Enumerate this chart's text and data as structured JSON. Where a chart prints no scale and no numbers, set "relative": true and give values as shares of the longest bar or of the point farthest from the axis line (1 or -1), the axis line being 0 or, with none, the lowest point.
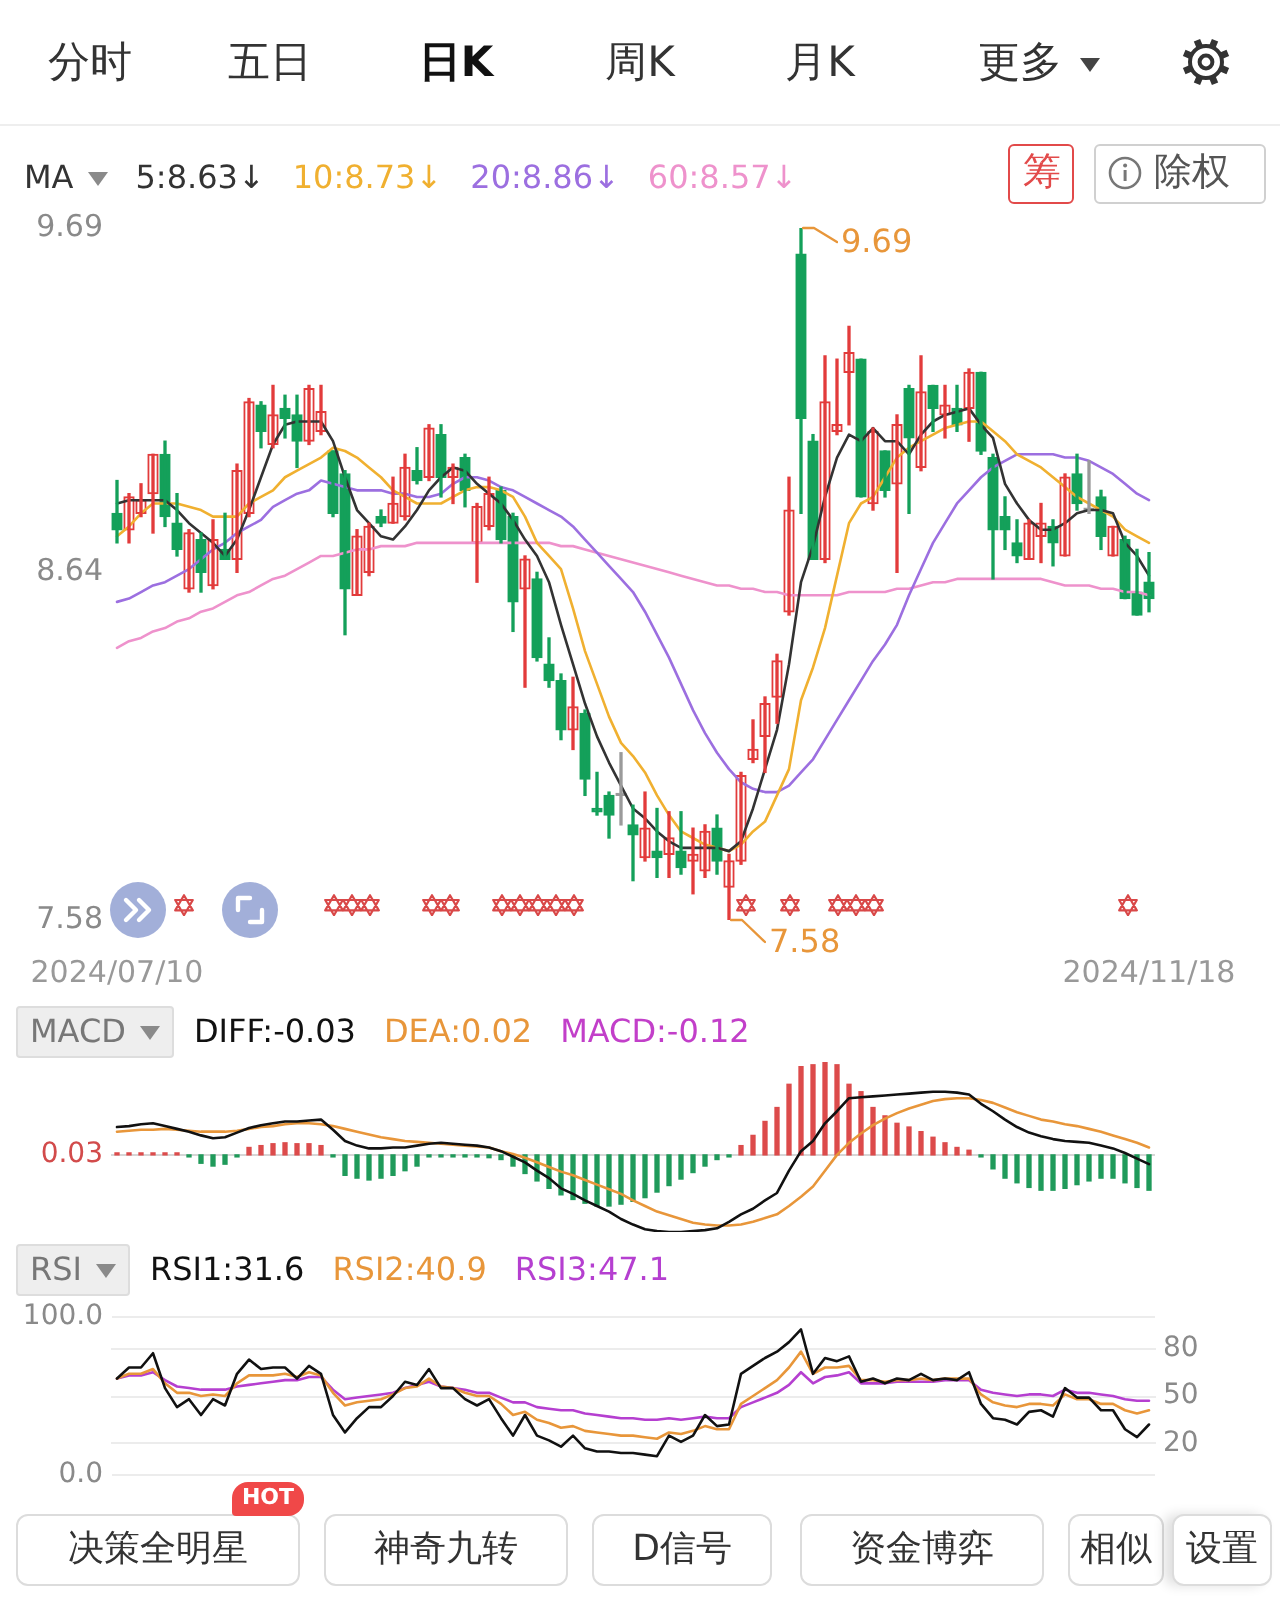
{
  "chart_data": [
    {
      "type": "candlestick",
      "legend_title": "MA",
      "legend": "top left",
      "categories": [
        "2024/07/10",
        null,
        null,
        null,
        null,
        null,
        null,
        null,
        null,
        null,
        null,
        null,
        null,
        null,
        null,
        null,
        null,
        null,
        null,
        null,
        null,
        null,
        null,
        null,
        null,
        null,
        null,
        null,
        null,
        null,
        null,
        null,
        null,
        null,
        null,
        null,
        null,
        null,
        null,
        null,
        null,
        null,
        null,
        null,
        null,
        null,
        null,
        null,
        null,
        null,
        null,
        null,
        null,
        null,
        null,
        null,
        null,
        null,
        null,
        null,
        null,
        null,
        null,
        null,
        null,
        null,
        null,
        null,
        null,
        null,
        null,
        null,
        null,
        null,
        null,
        null,
        null,
        null,
        null,
        null,
        null,
        null,
        null,
        null,
        null,
        null,
        "2024/11/18"
      ],
      "ylim": [
        7.58,
        9.69
      ],
      "yticks": [
        9.69,
        8.64,
        7.58
      ],
      "ohlc": [
        [
          8.82,
          8.92,
          8.73,
          8.77
        ],
        [
          8.77,
          8.88,
          8.73,
          8.87
        ],
        [
          8.82,
          8.91,
          8.81,
          8.86
        ],
        [
          8.88,
          9.0,
          8.76,
          9.0
        ],
        [
          9.0,
          9.04,
          8.78,
          8.81
        ],
        [
          8.79,
          8.88,
          8.69,
          8.71
        ],
        [
          8.59,
          8.77,
          8.58,
          8.76
        ],
        [
          8.74,
          8.76,
          8.58,
          8.64
        ],
        [
          8.6,
          8.8,
          8.59,
          8.74
        ],
        [
          8.71,
          8.82,
          8.68,
          8.68
        ],
        [
          8.68,
          8.97,
          8.64,
          8.95
        ],
        [
          8.82,
          9.17,
          8.81,
          9.16
        ],
        [
          9.15,
          9.16,
          9.02,
          9.07
        ],
        [
          9.03,
          9.21,
          9.02,
          9.12
        ],
        [
          9.14,
          9.18,
          9.05,
          9.11
        ],
        [
          9.12,
          9.18,
          8.96,
          9.04
        ],
        [
          9.04,
          9.21,
          9.03,
          9.2
        ],
        [
          9.07,
          9.21,
          9.06,
          9.13
        ],
        [
          9.01,
          9.01,
          8.81,
          8.82
        ],
        [
          8.94,
          8.95,
          8.45,
          8.59
        ],
        [
          8.57,
          8.77,
          8.57,
          8.75
        ],
        [
          8.64,
          8.79,
          8.63,
          8.78
        ],
        [
          8.81,
          8.83,
          8.78,
          8.79
        ],
        [
          8.79,
          8.93,
          8.79,
          8.85
        ],
        [
          8.81,
          9.0,
          8.8,
          8.96
        ],
        [
          8.95,
          9.02,
          8.91,
          8.92
        ],
        [
          8.93,
          9.09,
          8.92,
          9.08
        ],
        [
          9.06,
          9.09,
          8.87,
          8.93
        ],
        [
          8.93,
          8.97,
          8.85,
          8.96
        ],
        [
          8.99,
          9.0,
          8.84,
          8.89
        ],
        [
          8.73,
          8.85,
          8.61,
          8.84
        ],
        [
          8.78,
          8.93,
          8.77,
          8.88
        ],
        [
          8.89,
          8.9,
          8.73,
          8.74
        ],
        [
          8.81,
          8.82,
          8.46,
          8.55
        ],
        [
          8.59,
          8.69,
          8.29,
          8.68
        ],
        [
          8.62,
          8.64,
          8.37,
          8.38
        ],
        [
          8.36,
          8.44,
          8.29,
          8.31
        ],
        [
          8.31,
          8.33,
          8.13,
          8.16
        ],
        [
          8.16,
          8.32,
          8.1,
          8.23
        ],
        [
          8.21,
          8.22,
          7.96,
          8.01
        ],
        [
          7.92,
          8.03,
          7.9,
          7.91
        ],
        [
          7.96,
          7.97,
          7.83,
          7.9
        ],
        [
          7.96,
          8.09,
          7.87,
          7.96
        ],
        [
          7.87,
          7.93,
          7.7,
          7.84
        ],
        [
          7.77,
          7.97,
          7.76,
          7.86
        ],
        [
          7.79,
          7.92,
          7.71,
          7.77
        ],
        [
          7.78,
          7.91,
          7.71,
          7.83
        ],
        [
          7.79,
          7.91,
          7.72,
          7.74
        ],
        [
          7.76,
          7.86,
          7.66,
          7.78
        ],
        [
          7.73,
          7.87,
          7.71,
          7.85
        ],
        [
          7.86,
          7.9,
          7.72,
          7.76
        ],
        [
          7.68,
          7.78,
          7.58,
          7.76
        ],
        [
          7.76,
          8.03,
          7.75,
          8.02
        ],
        [
          8.07,
          8.19,
          8.06,
          8.1
        ],
        [
          8.14,
          8.26,
          8.03,
          8.24
        ],
        [
          8.26,
          8.39,
          8.18,
          8.37
        ],
        [
          8.52,
          8.93,
          8.51,
          8.83
        ],
        [
          9.61,
          9.69,
          8.82,
          9.11
        ],
        [
          9.04,
          9.06,
          8.68,
          8.68
        ],
        [
          8.68,
          9.3,
          8.67,
          9.16
        ],
        [
          9.07,
          9.29,
          9.06,
          9.09
        ],
        [
          9.25,
          9.39,
          9.09,
          9.31
        ],
        [
          9.29,
          9.29,
          8.87,
          8.87
        ],
        [
          8.85,
          9.08,
          8.83,
          9.07
        ],
        [
          9.01,
          9.01,
          8.87,
          8.89
        ],
        [
          8.91,
          9.12,
          8.64,
          9.09
        ],
        [
          9.2,
          9.21,
          8.82,
          9.05
        ],
        [
          8.96,
          9.3,
          8.95,
          9.19
        ],
        [
          9.21,
          9.21,
          9.07,
          9.14
        ],
        [
          9.12,
          9.21,
          9.05,
          9.15
        ],
        [
          9.14,
          9.21,
          9.07,
          9.09
        ],
        [
          9.14,
          9.26,
          9.04,
          9.25
        ],
        [
          9.25,
          9.25,
          9.0,
          9.01
        ],
        [
          8.99,
          9.0,
          8.62,
          8.77
        ],
        [
          8.81,
          8.87,
          8.71,
          8.77
        ],
        [
          8.73,
          8.8,
          8.67,
          8.69
        ],
        [
          8.68,
          8.8,
          8.68,
          8.79
        ],
        [
          8.75,
          8.85,
          8.67,
          8.79
        ],
        [
          8.78,
          8.8,
          8.66,
          8.73
        ],
        [
          8.69,
          8.94,
          8.69,
          8.93
        ],
        [
          8.94,
          9.0,
          8.83,
          8.85
        ],
        [
          8.83,
          8.98,
          8.82,
          8.83
        ],
        [
          8.87,
          8.89,
          8.71,
          8.75
        ],
        [
          8.69,
          8.78,
          8.69,
          8.78
        ],
        [
          8.74,
          8.75,
          8.56,
          8.56
        ],
        [
          8.58,
          8.71,
          8.51,
          8.51
        ],
        [
          8.61,
          8.7,
          8.52,
          8.56
        ]
      ],
      "colors": [
        "#14a05a",
        "#e23b3b",
        "#e23b3b",
        "#e23b3b",
        "#14a05a",
        "#14a05a",
        "#e23b3b",
        "#14a05a",
        "#e23b3b",
        "#14a05a",
        "#e23b3b",
        "#e23b3b",
        "#14a05a",
        "#e23b3b",
        "#14a05a",
        "#14a05a",
        "#e23b3b",
        "#e23b3b",
        "#14a05a",
        "#14a05a",
        "#e23b3b",
        "#e23b3b",
        "#14a05a",
        "#e23b3b",
        "#e23b3b",
        "#14a05a",
        "#e23b3b",
        "#14a05a",
        "#e23b3b",
        "#14a05a",
        "#e23b3b",
        "#e23b3b",
        "#14a05a",
        "#14a05a",
        "#e23b3b",
        "#14a05a",
        "#14a05a",
        "#14a05a",
        "#e23b3b",
        "#14a05a",
        "#14a05a",
        "#14a05a",
        "#9a9a9a",
        "#14a05a",
        "#e23b3b",
        "#14a05a",
        "#e23b3b",
        "#14a05a",
        "#e23b3b",
        "#e23b3b",
        "#14a05a",
        "#e23b3b",
        "#e23b3b",
        "#e23b3b",
        "#e23b3b",
        "#e23b3b",
        "#e23b3b",
        "#14a05a",
        "#14a05a",
        "#e23b3b",
        "#e23b3b",
        "#e23b3b",
        "#14a05a",
        "#e23b3b",
        "#14a05a",
        "#e23b3b",
        "#14a05a",
        "#e23b3b",
        "#14a05a",
        "#e23b3b",
        "#14a05a",
        "#e23b3b",
        "#14a05a",
        "#14a05a",
        "#14a05a",
        "#14a05a",
        "#e23b3b",
        "#e23b3b",
        "#14a05a",
        "#e23b3b",
        "#14a05a",
        "#9a9a9a",
        "#14a05a",
        "#e23b3b",
        "#14a05a",
        "#14a05a",
        "#14a05a"
      ],
      "series": [
        {
          "name": "5:8.63↓",
          "type": "line",
          "color": "#333333",
          "values": [
            8.85,
            8.86,
            8.86,
            8.86,
            8.86,
            8.83,
            8.79,
            8.76,
            8.73,
            8.69,
            8.74,
            8.83,
            8.93,
            9.03,
            9.09,
            9.1,
            9.1,
            9.1,
            9.04,
            8.93,
            8.83,
            8.79,
            8.75,
            8.74,
            8.78,
            8.83,
            8.89,
            8.93,
            8.96,
            8.95,
            8.91,
            8.88,
            8.85,
            8.8,
            8.74,
            8.69,
            8.61,
            8.48,
            8.36,
            8.24,
            8.14,
            8.06,
            7.99,
            7.92,
            7.89,
            7.85,
            7.82,
            7.8,
            7.8,
            7.8,
            7.8,
            7.79,
            7.82,
            7.92,
            8.04,
            8.16,
            8.36,
            8.61,
            8.72,
            8.87,
            8.99,
            9.06,
            9.04,
            9.08,
            9.04,
            9.04,
            9.0,
            9.06,
            9.1,
            9.12,
            9.13,
            9.14,
            9.09,
            9.05,
            8.91,
            8.85,
            8.8,
            8.77,
            8.77,
            8.79,
            8.82,
            8.83,
            8.83,
            8.82,
            8.73,
            8.69,
            8.63
          ]
        },
        {
          "name": "10:8.73↓",
          "type": "line",
          "color": "#f0b030",
          "values": [
            8.75,
            8.78,
            8.82,
            8.85,
            8.85,
            8.85,
            8.84,
            8.83,
            8.81,
            8.81,
            8.81,
            8.85,
            8.87,
            8.89,
            8.93,
            8.95,
            8.97,
            8.99,
            9.02,
            9.01,
            8.99,
            8.96,
            8.93,
            8.89,
            8.87,
            8.85,
            8.85,
            8.85,
            8.87,
            8.89,
            8.9,
            8.9,
            8.89,
            8.87,
            8.81,
            8.73,
            8.69,
            8.65,
            8.53,
            8.4,
            8.3,
            8.2,
            8.12,
            8.08,
            8.03,
            7.96,
            7.9,
            7.85,
            7.83,
            7.81,
            7.8,
            7.79,
            7.81,
            7.85,
            7.88,
            7.96,
            8.04,
            8.25,
            8.35,
            8.47,
            8.63,
            8.79,
            8.85,
            8.87,
            8.93,
            8.99,
            9.02,
            9.04,
            9.06,
            9.08,
            9.09,
            9.1,
            9.1,
            9.07,
            9.04,
            9.0,
            8.98,
            8.96,
            8.93,
            8.9,
            8.87,
            8.85,
            8.83,
            8.81,
            8.77,
            8.75,
            8.73
          ]
        },
        {
          "name": "20:8.86↓",
          "type": "line",
          "color": "#9c6fe0",
          "values": [
            8.55,
            8.56,
            8.58,
            8.6,
            8.61,
            8.63,
            8.65,
            8.68,
            8.71,
            8.73,
            8.76,
            8.78,
            8.8,
            8.84,
            8.86,
            8.88,
            8.89,
            8.92,
            8.91,
            8.9,
            8.89,
            8.89,
            8.89,
            8.88,
            8.88,
            8.87,
            8.87,
            8.88,
            8.91,
            8.93,
            8.93,
            8.92,
            8.9,
            8.89,
            8.87,
            8.85,
            8.83,
            8.81,
            8.78,
            8.74,
            8.7,
            8.66,
            8.62,
            8.58,
            8.52,
            8.45,
            8.38,
            8.3,
            8.22,
            8.15,
            8.09,
            8.04,
            8.0,
            7.98,
            7.97,
            7.97,
            7.99,
            8.03,
            8.07,
            8.13,
            8.19,
            8.25,
            8.31,
            8.37,
            8.42,
            8.48,
            8.57,
            8.65,
            8.73,
            8.79,
            8.85,
            8.89,
            8.93,
            8.96,
            8.98,
            9.0,
            9.0,
            9.0,
            9.0,
            8.99,
            8.99,
            8.98,
            8.96,
            8.94,
            8.91,
            8.88,
            8.86
          ]
        },
        {
          "name": "60:8.57↓",
          "type": "line",
          "color": "#ee92cc",
          "values": [
            8.41,
            8.43,
            8.44,
            8.46,
            8.47,
            8.49,
            8.5,
            8.52,
            8.53,
            8.55,
            8.57,
            8.58,
            8.6,
            8.62,
            8.63,
            8.65,
            8.67,
            8.69,
            8.69,
            8.7,
            8.71,
            8.71,
            8.72,
            8.72,
            8.72,
            8.73,
            8.73,
            8.73,
            8.73,
            8.73,
            8.73,
            8.73,
            8.73,
            8.73,
            8.73,
            8.73,
            8.73,
            8.72,
            8.72,
            8.71,
            8.7,
            8.69,
            8.68,
            8.67,
            8.66,
            8.65,
            8.64,
            8.63,
            8.62,
            8.61,
            8.6,
            8.6,
            8.59,
            8.59,
            8.58,
            8.58,
            8.57,
            8.57,
            8.57,
            8.57,
            8.57,
            8.58,
            8.58,
            8.58,
            8.58,
            8.59,
            8.59,
            8.6,
            8.61,
            8.61,
            8.62,
            8.62,
            8.62,
            8.62,
            8.62,
            8.62,
            8.62,
            8.62,
            8.61,
            8.6,
            8.6,
            8.6,
            8.59,
            8.59,
            8.58,
            8.58,
            8.57
          ]
        }
      ],
      "annotations": [
        "9.69",
        "7.58",
        "分时",
        "五日",
        "日K",
        "周K",
        "月K",
        "更多",
        "筹",
        "除权"
      ]
    },
    {
      "type": "line",
      "legend_title": "MACD",
      "legend": "top left",
      "relative": true,
      "tick_labels": false,
      "categories": [
        null,
        null,
        null,
        null,
        null,
        null,
        null,
        null,
        null,
        null,
        null,
        null,
        null,
        null,
        null,
        null,
        null,
        null,
        null,
        null,
        null,
        null,
        null,
        null,
        null,
        null,
        null,
        null,
        null,
        null,
        null,
        null,
        null,
        null,
        null,
        null,
        null,
        null,
        null,
        null,
        null,
        null,
        null,
        null,
        null,
        null,
        null,
        null,
        null,
        null,
        null,
        null,
        null,
        null,
        null,
        null,
        null,
        null,
        null,
        null,
        null,
        null,
        null,
        null,
        null,
        null,
        null,
        null,
        null,
        null,
        null,
        null,
        null,
        null,
        null,
        null,
        null,
        null,
        null,
        null,
        null,
        null,
        null,
        null,
        null,
        null,
        null
      ],
      "series": [
        {
          "name": "DIFF:-0.03",
          "type": "line",
          "color": "#111111",
          "values": [
            0.3,
            0.31,
            0.33,
            0.34,
            0.31,
            0.28,
            0.25,
            0.21,
            0.18,
            0.19,
            0.24,
            0.29,
            0.32,
            0.34,
            0.36,
            0.36,
            0.37,
            0.38,
            0.27,
            0.15,
            0.1,
            0.07,
            0.07,
            0.08,
            0.08,
            0.1,
            0.12,
            0.13,
            0.12,
            0.11,
            0.1,
            0.08,
            0.04,
            -0.02,
            -0.08,
            -0.17,
            -0.25,
            -0.36,
            -0.42,
            -0.49,
            -0.55,
            -0.61,
            -0.69,
            -0.75,
            -0.8,
            -0.82,
            -0.83,
            -0.83,
            -0.82,
            -0.81,
            -0.79,
            -0.72,
            -0.64,
            -0.58,
            -0.49,
            -0.41,
            -0.17,
            0.04,
            0.15,
            0.34,
            0.47,
            0.61,
            0.62,
            0.63,
            0.64,
            0.65,
            0.66,
            0.67,
            0.68,
            0.68,
            0.67,
            0.65,
            0.55,
            0.47,
            0.38,
            0.3,
            0.24,
            0.2,
            0.17,
            0.15,
            0.14,
            0.13,
            0.1,
            0.07,
            0.02,
            -0.04,
            -0.1
          ]
        },
        {
          "name": "DEA:0.02",
          "type": "line",
          "color": "#e8963a",
          "values": [
            0.25,
            0.26,
            0.27,
            0.27,
            0.28,
            0.27,
            0.26,
            0.25,
            0.25,
            0.25,
            0.26,
            0.28,
            0.3,
            0.31,
            0.33,
            0.34,
            0.34,
            0.33,
            0.31,
            0.28,
            0.25,
            0.22,
            0.19,
            0.17,
            0.15,
            0.14,
            0.13,
            0.12,
            0.11,
            0.1,
            0.09,
            0.08,
            0.04,
            0.01,
            -0.03,
            -0.08,
            -0.13,
            -0.18,
            -0.22,
            -0.27,
            -0.32,
            -0.37,
            -0.42,
            -0.49,
            -0.55,
            -0.61,
            -0.65,
            -0.69,
            -0.73,
            -0.75,
            -0.76,
            -0.76,
            -0.75,
            -0.72,
            -0.68,
            -0.64,
            -0.55,
            -0.45,
            -0.34,
            -0.17,
            0.0,
            0.13,
            0.23,
            0.32,
            0.39,
            0.45,
            0.5,
            0.54,
            0.58,
            0.6,
            0.61,
            0.61,
            0.59,
            0.56,
            0.51,
            0.46,
            0.42,
            0.38,
            0.36,
            0.33,
            0.31,
            0.28,
            0.25,
            0.21,
            0.17,
            0.13,
            0.08
          ]
        },
        {
          "name": "MACD:-0.12",
          "type": "bar",
          "values": [
            0.02,
            0.02,
            0.02,
            0.02,
            0.01,
            0.01,
            -0.02,
            -0.09,
            -0.12,
            -0.1,
            -0.02,
            0.08,
            0.1,
            0.12,
            0.13,
            0.12,
            0.12,
            0.1,
            -0.02,
            -0.22,
            -0.25,
            -0.27,
            -0.25,
            -0.22,
            -0.17,
            -0.12,
            -0.02,
            -0.01,
            -0.01,
            -0.02,
            -0.02,
            -0.03,
            -0.05,
            -0.12,
            -0.2,
            -0.28,
            -0.36,
            -0.43,
            -0.48,
            -0.52,
            -0.55,
            -0.55,
            -0.53,
            -0.5,
            -0.46,
            -0.4,
            -0.33,
            -0.26,
            -0.19,
            -0.12,
            -0.05,
            -0.02,
            0.1,
            0.21,
            0.36,
            0.51,
            0.76,
            0.95,
            0.97,
            1.0,
            0.97,
            0.76,
            0.68,
            0.51,
            0.42,
            0.34,
            0.3,
            0.25,
            0.19,
            0.13,
            0.08,
            0.05,
            -0.02,
            -0.15,
            -0.25,
            -0.3,
            -0.35,
            -0.38,
            -0.38,
            -0.36,
            -0.32,
            -0.28,
            -0.25,
            -0.25,
            -0.3,
            -0.35,
            -0.38
          ],
          "colors": [
            "#dc4b4b",
            "#dc4b4b",
            "#dc4b4b",
            "#dc4b4b",
            "#dc4b4b",
            "#dc4b4b",
            "#1f9a5a",
            "#1f9a5a",
            "#1f9a5a",
            "#1f9a5a",
            "#1f9a5a",
            "#dc4b4b",
            "#dc4b4b",
            "#dc4b4b",
            "#dc4b4b",
            "#dc4b4b",
            "#dc4b4b",
            "#dc4b4b",
            "#1f9a5a",
            "#1f9a5a",
            "#1f9a5a",
            "#1f9a5a",
            "#1f9a5a",
            "#1f9a5a",
            "#1f9a5a",
            "#1f9a5a",
            "#1f9a5a",
            "#1f9a5a",
            "#1f9a5a",
            "#1f9a5a",
            "#1f9a5a",
            "#1f9a5a",
            "#1f9a5a",
            "#1f9a5a",
            "#1f9a5a",
            "#1f9a5a",
            "#1f9a5a",
            "#1f9a5a",
            "#1f9a5a",
            "#1f9a5a",
            "#1f9a5a",
            "#1f9a5a",
            "#1f9a5a",
            "#1f9a5a",
            "#1f9a5a",
            "#1f9a5a",
            "#1f9a5a",
            "#1f9a5a",
            "#1f9a5a",
            "#1f9a5a",
            "#1f9a5a",
            "#1f9a5a",
            "#dc4b4b",
            "#dc4b4b",
            "#dc4b4b",
            "#dc4b4b",
            "#dc4b4b",
            "#dc4b4b",
            "#dc4b4b",
            "#dc4b4b",
            "#dc4b4b",
            "#dc4b4b",
            "#dc4b4b",
            "#dc4b4b",
            "#dc4b4b",
            "#dc4b4b",
            "#dc4b4b",
            "#dc4b4b",
            "#dc4b4b",
            "#dc4b4b",
            "#dc4b4b",
            "#dc4b4b",
            "#1f9a5a",
            "#1f9a5a",
            "#1f9a5a",
            "#1f9a5a",
            "#1f9a5a",
            "#1f9a5a",
            "#1f9a5a",
            "#1f9a5a",
            "#1f9a5a",
            "#1f9a5a",
            "#1f9a5a",
            "#1f9a5a",
            "#1f9a5a",
            "#1f9a5a",
            "#1f9a5a"
          ]
        }
      ],
      "annotations": [
        "0.03"
      ]
    },
    {
      "type": "line",
      "legend_title": "RSI",
      "legend": "top left",
      "tick_labels": "y",
      "grid": "y",
      "categories": [
        null,
        null,
        null,
        null,
        null,
        null,
        null,
        null,
        null,
        null,
        null,
        null,
        null,
        null,
        null,
        null,
        null,
        null,
        null,
        null,
        null,
        null,
        null,
        null,
        null,
        null,
        null,
        null,
        null,
        null,
        null,
        null,
        null,
        null,
        null,
        null,
        null,
        null,
        null,
        null,
        null,
        null,
        null,
        null,
        null,
        null,
        null,
        null,
        null,
        null,
        null,
        null,
        null,
        null,
        null,
        null,
        null,
        null,
        null,
        null,
        null,
        null,
        null,
        null,
        null,
        null,
        null,
        null,
        null,
        null,
        null,
        null,
        null,
        null,
        null,
        null,
        null,
        null,
        null,
        null,
        null,
        null,
        null,
        null,
        null,
        null,
        null
      ],
      "ylim": [
        0,
        100
      ],
      "yticks": [
        {
          "value": 100,
          "label": "100.0"
        },
        {
          "value": 0,
          "label": "0.0"
        }
      ],
      "y2lim": [
        0,
        100
      ],
      "y2ticks": [
        80,
        50,
        20
      ],
      "series": [
        {
          "name": "RSI1:31.6",
          "type": "line",
          "color": "#111111",
          "values": [
            61,
            68,
            68,
            77,
            55,
            43,
            48,
            38,
            48,
            44,
            64,
            73,
            67,
            68,
            68,
            61,
            69,
            64,
            38,
            27,
            36,
            43,
            43,
            50,
            59,
            57,
            67,
            55,
            55,
            48,
            44,
            48,
            36,
            25,
            38,
            25,
            22,
            18,
            25,
            17,
            15,
            15,
            14,
            14,
            13,
            12,
            25,
            21,
            25,
            38,
            31,
            32,
            64,
            69,
            74,
            78,
            84,
            92,
            64,
            74,
            72,
            75,
            59,
            61,
            58,
            61,
            60,
            64,
            60,
            61,
            60,
            65,
            45,
            36,
            35,
            32,
            40,
            41,
            37,
            55,
            49,
            49,
            41,
            41,
            29,
            24,
            32
          ]
        },
        {
          "name": "RSI2:40.9",
          "type": "line",
          "color": "#e8963a",
          "values": [
            61,
            64,
            64,
            67,
            58,
            52,
            52,
            50,
            51,
            50,
            58,
            63,
            63,
            63,
            64,
            62,
            65,
            63,
            52,
            44,
            46,
            47,
            48,
            51,
            55,
            56,
            61,
            56,
            55,
            52,
            50,
            50,
            45,
            38,
            40,
            35,
            33,
            30,
            31,
            28,
            27,
            26,
            25,
            25,
            24,
            23,
            27,
            26,
            28,
            31,
            29,
            29,
            45,
            50,
            55,
            60,
            68,
            78,
            64,
            68,
            68,
            69,
            60,
            60,
            59,
            60,
            60,
            61,
            60,
            61,
            61,
            61,
            51,
            46,
            44,
            43,
            45,
            45,
            44,
            51,
            48,
            48,
            45,
            45,
            41,
            39,
            41
          ]
        },
        {
          "name": "RSI3:47.1",
          "type": "line",
          "color": "#b53fd0",
          "values": [
            61,
            63,
            63,
            65,
            60,
            56,
            55,
            54,
            54,
            54,
            56,
            57,
            58,
            59,
            60,
            60,
            62,
            62,
            54,
            48,
            49,
            50,
            51,
            52,
            55,
            57,
            59,
            56,
            55,
            54,
            52,
            52,
            49,
            46,
            46,
            43,
            42,
            41,
            41,
            39,
            38,
            37,
            36,
            36,
            35,
            35,
            36,
            35,
            36,
            37,
            36,
            36,
            43,
            46,
            49,
            52,
            57,
            65,
            58,
            62,
            63,
            65,
            58,
            58,
            58,
            59,
            59,
            59,
            59,
            60,
            60,
            60,
            54,
            52,
            51,
            50,
            51,
            51,
            50,
            54,
            52,
            52,
            51,
            50,
            48,
            47,
            47
          ]
        }
      ],
      "annotations": [
        "决策全明星",
        "HOT",
        "神奇九转",
        "D信号",
        "资金博弈",
        "相似",
        "设置"
      ]
    }
  ]
}
